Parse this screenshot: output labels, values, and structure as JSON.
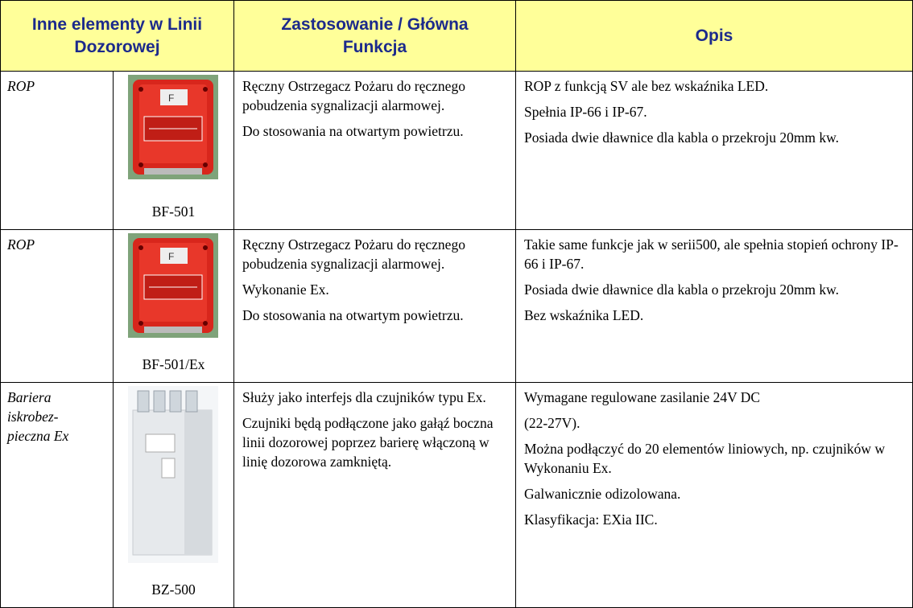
{
  "header": {
    "element": "Inne elementy w Linii Dozorowej",
    "function": "Zastosowanie / Główna Funkcja",
    "description": "Opis"
  },
  "rows": [
    {
      "name": [
        "ROP"
      ],
      "code": "BF-501",
      "function": [
        "Ręczny Ostrzegacz Pożaru do ręcznego pobudzenia sygnalizacji alarmowej.",
        "Do stosowania na otwartym powietrzu."
      ],
      "description": [
        "ROP z funkcją SV ale bez wskaźnika LED.",
        "Spełnia  IP-66 i IP-67.",
        "Posiada dwie dławnice dla kabla o przekroju 20mm kw."
      ]
    },
    {
      "name": [
        "ROP"
      ],
      "code": "BF-501/Ex",
      "function": [
        "Ręczny Ostrzegacz Pożaru do ręcznego pobudzenia sygnalizacji alarmowej.",
        "Wykonanie Ex.",
        "Do stosowania na otwartym powietrzu."
      ],
      "description": [
        "Takie same funkcje jak w serii500, ale spełnia stopień ochrony  IP-66 i IP-67.",
        "Posiada dwie dławnice dla kabla o przekroju 20mm kw.",
        "Bez wskaźnika LED."
      ]
    },
    {
      "name": [
        "Bariera",
        "iskrobez-",
        "pieczna Ex"
      ],
      "code": "BZ-500",
      "function": [
        "Służy jako interfejs dla czujników typu Ex.",
        "Czujniki będą podłączone jako gałąź boczna linii dozorowej poprzez barierę włączoną w linię dozorowa zamkniętą."
      ],
      "description": [
        "Wymagane regulowane zasilanie 24V DC",
        " (22-27V).",
        "Można podłączyć do 20 elementów liniowych, np. czujników w Wykonaniu Ex.",
        "Galwanicznie odizolowana.",
        "Klasyfikacja: EXia IIC."
      ]
    }
  ]
}
